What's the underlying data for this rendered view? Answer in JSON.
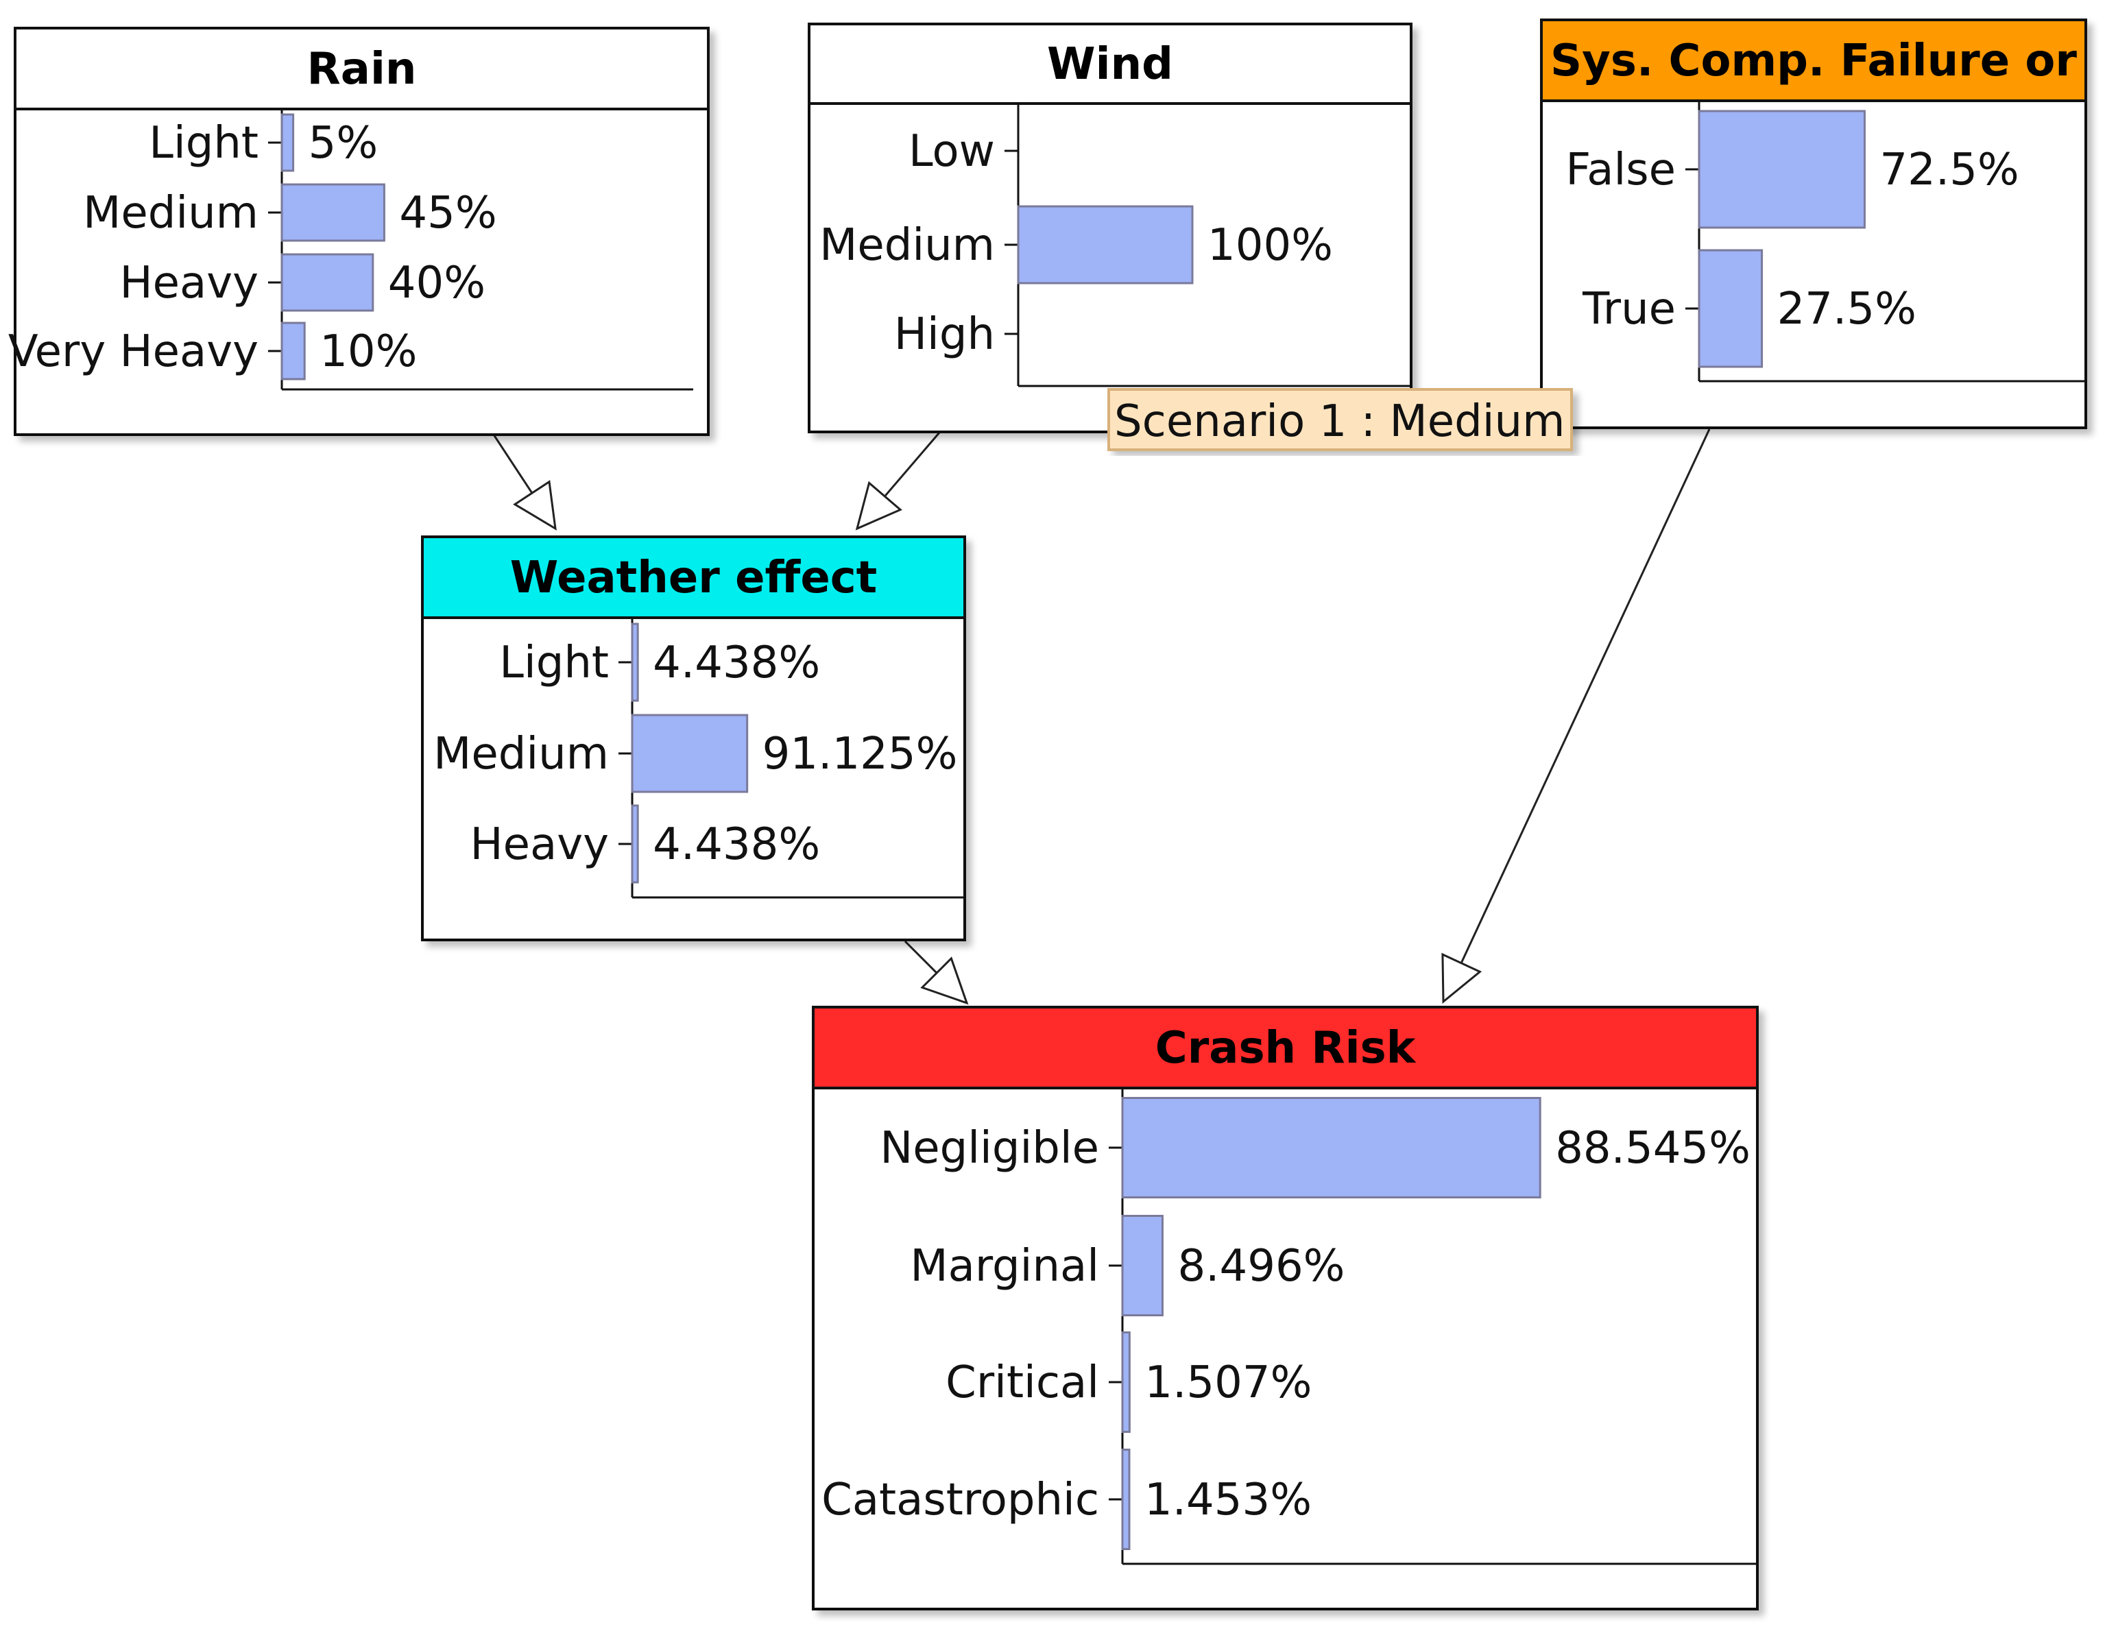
{
  "nodes": [
    {
      "id": "rain",
      "title": "Rain",
      "header_color": "#ffffff",
      "states": [
        {
          "label": "Light",
          "value": 5,
          "text": "5%"
        },
        {
          "label": "Medium",
          "value": 45,
          "text": "45%"
        },
        {
          "label": "Heavy",
          "value": 40,
          "text": "40%"
        },
        {
          "label": "Very Heavy",
          "value": 10,
          "text": "10%"
        }
      ]
    },
    {
      "id": "wind",
      "title": "Wind",
      "header_color": "#ffffff",
      "states": [
        {
          "label": "Low",
          "value": 0,
          "text": ""
        },
        {
          "label": "Medium",
          "value": 100,
          "text": "100%"
        },
        {
          "label": "High",
          "value": 0,
          "text": ""
        }
      ]
    },
    {
      "id": "sys",
      "title": "Sys. Comp. Failure or",
      "header_color": "#ff9900",
      "states": [
        {
          "label": "False",
          "value": 72.5,
          "text": "72.5%"
        },
        {
          "label": "True",
          "value": 27.5,
          "text": "27.5%"
        }
      ]
    },
    {
      "id": "weather",
      "title": "Weather effect",
      "header_color": "#00eeee",
      "states": [
        {
          "label": "Light",
          "value": 4.438,
          "text": "4.438%"
        },
        {
          "label": "Medium",
          "value": 91.125,
          "text": "91.125%"
        },
        {
          "label": "Heavy",
          "value": 4.438,
          "text": "4.438%"
        }
      ]
    },
    {
      "id": "crash",
      "title": "Crash Risk",
      "header_color": "#ff2a2a",
      "states": [
        {
          "label": "Negligible",
          "value": 88.545,
          "text": "88.545%"
        },
        {
          "label": "Marginal",
          "value": 8.496,
          "text": "8.496%"
        },
        {
          "label": "Critical",
          "value": 1.507,
          "text": "1.507%"
        },
        {
          "label": "Catastrophic",
          "value": 1.453,
          "text": "1.453%"
        }
      ]
    }
  ],
  "edges": [
    {
      "from": "rain",
      "to": "weather"
    },
    {
      "from": "wind",
      "to": "weather"
    },
    {
      "from": "weather",
      "to": "crash"
    },
    {
      "from": "sys",
      "to": "crash"
    }
  ],
  "scenario_label": "Scenario 1 : Medium",
  "colors": {
    "bar_fill": "#9fb3f7",
    "bar_stroke": "#7a7a9a",
    "scenario_bg": "#fde4bf",
    "scenario_border": "#d8b07a"
  }
}
